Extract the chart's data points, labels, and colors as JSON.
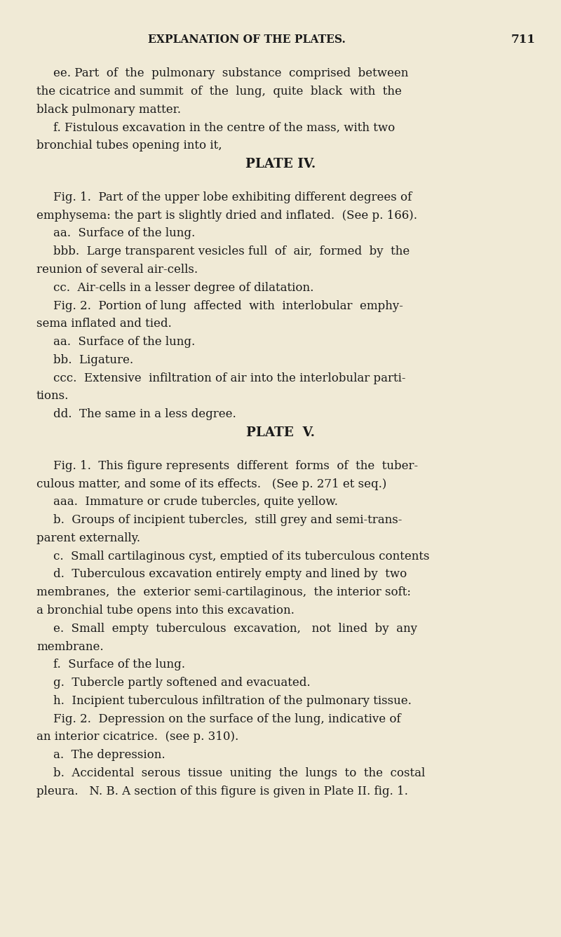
{
  "bg_color": "#f0ead6",
  "text_color": "#1a1a1a",
  "header_text": "EXPLANATION OF THE PLATES.",
  "page_number": "711",
  "body_lines": [
    {
      "indent": 1,
      "text": "ee. Part  of  the  pulmonary  substance  comprised  between"
    },
    {
      "indent": 0,
      "text": "the cicatrice and summit  of  the  lung,  quite  black  with  the"
    },
    {
      "indent": 0,
      "text": "black pulmonary matter."
    },
    {
      "indent": 1,
      "text": "f. Fistulous excavation in the centre of the mass, with two"
    },
    {
      "indent": 0,
      "text": "bronchial tubes opening into it,"
    },
    {
      "indent": 2,
      "text": "PLATE IV.",
      "style": "heading"
    },
    {
      "indent": 1,
      "text": "Fig. 1.  Part of the upper lobe exhibiting different degrees of"
    },
    {
      "indent": 0,
      "text": "emphysema: the part is slightly dried and inflated.  (See p. 166)."
    },
    {
      "indent": 1,
      "text": "aa.  Surface of the lung."
    },
    {
      "indent": 1,
      "text": "bbb.  Large transparent vesicles full  of  air,  formed  by  the"
    },
    {
      "indent": 0,
      "text": "reunion of several air-cells."
    },
    {
      "indent": 1,
      "text": "cc.  Air-cells in a lesser degree of dilatation."
    },
    {
      "indent": 1,
      "text": "Fig. 2.  Portion of lung  affected  with  interlobular  emphy-"
    },
    {
      "indent": 0,
      "text": "sema inflated and tied."
    },
    {
      "indent": 1,
      "text": "aa.  Surface of the lung."
    },
    {
      "indent": 1,
      "text": "bb.  Ligature."
    },
    {
      "indent": 1,
      "text": "ccc.  Extensive  infiltration of air into the interlobular parti-"
    },
    {
      "indent": 0,
      "text": "tions."
    },
    {
      "indent": 1,
      "text": "dd.  The same in a less degree."
    },
    {
      "indent": 2,
      "text": "PLATE  V.",
      "style": "heading"
    },
    {
      "indent": 1,
      "text": "Fig. 1.  This figure represents  different  forms  of  the  tuber-"
    },
    {
      "indent": 0,
      "text": "culous matter, and some of its effects.   (See p. 271 et seq.)"
    },
    {
      "indent": 1,
      "text": "aaa.  Immature or crude tubercles, quite yellow."
    },
    {
      "indent": 1,
      "text": "b.  Groups of incipient tubercles,  still grey and semi-trans-"
    },
    {
      "indent": 0,
      "text": "parent externally."
    },
    {
      "indent": 1,
      "text": "c.  Small cartilaginous cyst, emptied of its tuberculous contents"
    },
    {
      "indent": 1,
      "text": "d.  Tuberculous excavation entirely empty and lined by  two"
    },
    {
      "indent": 0,
      "text": "membranes,  the  exterior semi-cartilaginous,  the interior soft:"
    },
    {
      "indent": 0,
      "text": "a bronchial tube opens into this excavation."
    },
    {
      "indent": 1,
      "text": "e.  Small  empty  tuberculous  excavation,   not  lined  by  any"
    },
    {
      "indent": 0,
      "text": "membrane."
    },
    {
      "indent": 1,
      "text": "f.  Surface of the lung."
    },
    {
      "indent": 1,
      "text": "g.  Tubercle partly softened and evacuated."
    },
    {
      "indent": 1,
      "text": "h.  Incipient tuberculous infiltration of the pulmonary tissue."
    },
    {
      "indent": 1,
      "text": "Fig. 2.  Depression on the surface of the lung, indicative of"
    },
    {
      "indent": 0,
      "text": "an interior cicatrice.  (see p. 310)."
    },
    {
      "indent": 1,
      "text": "a.  The depression."
    },
    {
      "indent": 1,
      "text": "b.  Accidental  serous  tissue  uniting  the  lungs  to  the  costal"
    },
    {
      "indent": 0,
      "text": "pleura.   N. B. A section of this figure is given in Plate II. fig. 1."
    }
  ]
}
